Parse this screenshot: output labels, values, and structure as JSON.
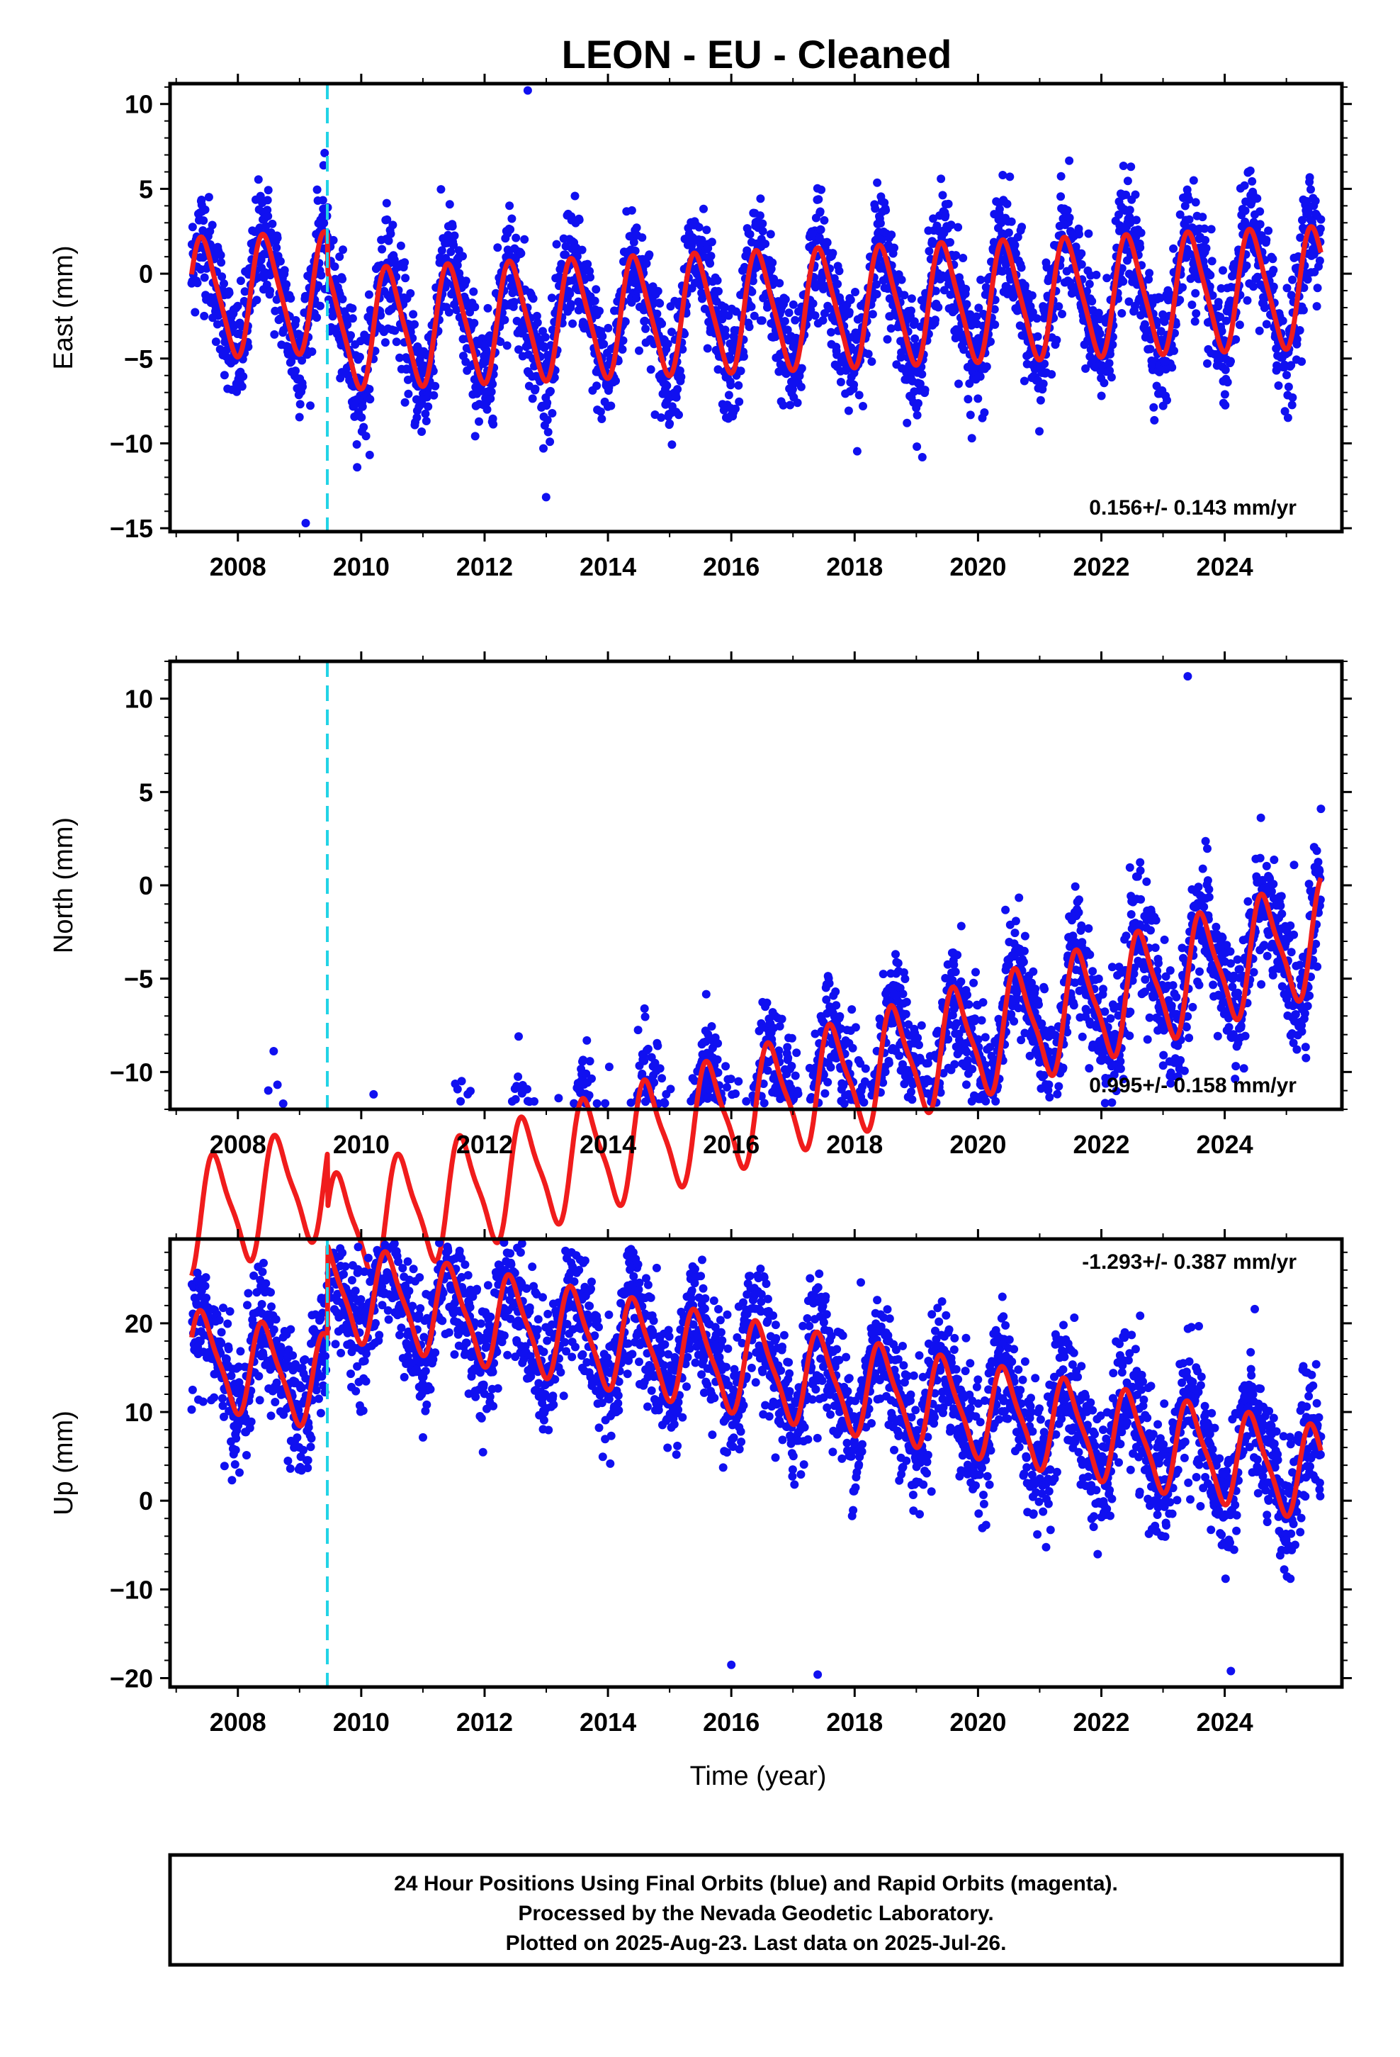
{
  "figure": {
    "title": "LEON  - EU - Cleaned",
    "xlabel": "Time (year)",
    "caption": [
      "24 Hour Positions Using Final Orbits (blue) and Rapid Orbits (magenta).",
      "Processed by the Nevada Geodetic Laboratory.",
      "Plotted on 2025-Aug-23. Last data on 2025-Jul-26."
    ],
    "colors": {
      "final_orbits": "#1010f0",
      "model_fit": "#f01c1c",
      "equipment_change": "#22d3e6",
      "frame": "#000000"
    }
  },
  "chart_data": [
    {
      "type": "scatter",
      "component": "east",
      "ylabel": "East (mm)",
      "xlim": [
        2006.9,
        2025.9
      ],
      "ylim": [
        -15.2,
        11.2
      ],
      "xticks": [
        2008,
        2010,
        2012,
        2014,
        2016,
        2018,
        2020,
        2022,
        2024
      ],
      "yticks": [
        -15,
        -10,
        -5,
        0,
        5,
        10
      ],
      "rate": "0.156+/- 0.143 mm/yr",
      "rate_position": "bottom-right",
      "equipment_change_x": 2009.45,
      "model": {
        "offset": 0.0,
        "trend": 0.156,
        "annual_amp": 3.4,
        "annual_phase": 0.0,
        "semiannual_amp": 0.6,
        "jump_2009_45": -2.2
      },
      "scatter": {
        "noise_sd": 1.7,
        "outliers": [
          [
            2009.1,
            -14.7
          ],
          [
            2012.7,
            10.8
          ],
          [
            2019.9,
            -9.7
          ],
          [
            2025.1,
            -7.3
          ]
        ]
      }
    },
    {
      "type": "scatter",
      "component": "north",
      "ylabel": "North (mm)",
      "xlim": [
        2006.9,
        2025.9
      ],
      "ylim": [
        -12,
        12
      ],
      "xticks": [
        2008,
        2010,
        2012,
        2014,
        2016,
        2018,
        2020,
        2022,
        2024
      ],
      "yticks": [
        -10,
        -5,
        0,
        5,
        10
      ],
      "rate": "0.995+/- 0.158 mm/yr",
      "rate_position": "bottom-right",
      "equipment_change_x": 2009.45,
      "model": {
        "offset": -8.7,
        "trend": 0.995,
        "annual_amp": 2.9,
        "annual_phase": -0.2,
        "semiannual_amp": 0.7,
        "jump_2009_45": -3.0
      },
      "scatter": {
        "noise_sd": 1.6,
        "outliers": [
          [
            2010.2,
            -11.2
          ],
          [
            2013.2,
            -11.4
          ],
          [
            2023.4,
            11.2
          ]
        ]
      }
    },
    {
      "type": "scatter",
      "component": "up",
      "ylabel": "Up (mm)",
      "xlim": [
        2006.9,
        2025.9
      ],
      "ylim": [
        -21,
        29.5
      ],
      "xticks": [
        2008,
        2010,
        2012,
        2014,
        2016,
        2018,
        2020,
        2022,
        2024
      ],
      "yticks": [
        -20,
        -10,
        0,
        10,
        20
      ],
      "rate": "-1.293+/- 0.387 mm/yr",
      "rate_position": "top-right",
      "equipment_change_x": 2009.45,
      "model": {
        "offset": 4.2,
        "trend": -1.293,
        "annual_amp": 5.0,
        "annual_phase": 0.0,
        "semiannual_amp": 1.2,
        "jump_2009_45": 10.5
      },
      "scatter": {
        "noise_sd": 3.6,
        "outliers": [
          [
            2009.95,
            28.6
          ],
          [
            2013.6,
            26.8
          ],
          [
            2018.1,
            24.6
          ],
          [
            2016.0,
            -18.5
          ],
          [
            2017.4,
            -19.6
          ],
          [
            2024.1,
            -19.2
          ]
        ]
      }
    }
  ]
}
